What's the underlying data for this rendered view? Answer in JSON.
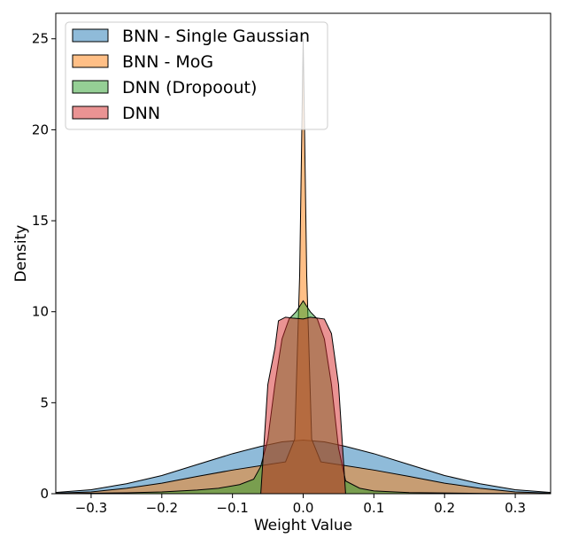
{
  "chart_data": {
    "type": "area",
    "title": "",
    "xlabel": "Weight Value",
    "ylabel": "Density",
    "xlim": [
      -0.35,
      0.35
    ],
    "ylim": [
      0,
      26.4
    ],
    "xticks": [
      -0.3,
      -0.2,
      -0.1,
      0.0,
      0.1,
      0.2,
      0.3
    ],
    "xtick_labels": [
      "−0.3",
      "−0.2",
      "−0.1",
      "0.0",
      "0.1",
      "0.2",
      "0.3"
    ],
    "yticks": [
      0,
      5,
      10,
      15,
      20,
      25
    ],
    "ytick_labels": [
      "0",
      "5",
      "10",
      "15",
      "20",
      "25"
    ],
    "grid": false,
    "legend_position": "top-left",
    "series": [
      {
        "name": "BNN - Single Gaussian",
        "color": "#1f77b4",
        "opacity": 0.5,
        "points": [
          [
            -0.35,
            0.07
          ],
          [
            -0.3,
            0.22
          ],
          [
            -0.25,
            0.55
          ],
          [
            -0.2,
            1.0
          ],
          [
            -0.15,
            1.6
          ],
          [
            -0.1,
            2.2
          ],
          [
            -0.06,
            2.6
          ],
          [
            -0.03,
            2.85
          ],
          [
            0.0,
            2.95
          ],
          [
            0.03,
            2.85
          ],
          [
            0.06,
            2.6
          ],
          [
            0.1,
            2.2
          ],
          [
            0.15,
            1.6
          ],
          [
            0.2,
            1.0
          ],
          [
            0.25,
            0.55
          ],
          [
            0.3,
            0.22
          ],
          [
            0.35,
            0.07
          ]
        ]
      },
      {
        "name": "BNN - MoG",
        "color": "#ff7f0e",
        "opacity": 0.5,
        "points": [
          [
            -0.35,
            0.03
          ],
          [
            -0.3,
            0.1
          ],
          [
            -0.25,
            0.3
          ],
          [
            -0.2,
            0.58
          ],
          [
            -0.15,
            0.95
          ],
          [
            -0.1,
            1.3
          ],
          [
            -0.05,
            1.6
          ],
          [
            -0.025,
            1.75
          ],
          [
            -0.012,
            3.0
          ],
          [
            -0.005,
            12.0
          ],
          [
            0.0,
            25.0
          ],
          [
            0.005,
            12.0
          ],
          [
            0.012,
            3.0
          ],
          [
            0.025,
            1.75
          ],
          [
            0.05,
            1.6
          ],
          [
            0.1,
            1.3
          ],
          [
            0.15,
            0.95
          ],
          [
            0.2,
            0.58
          ],
          [
            0.25,
            0.3
          ],
          [
            0.3,
            0.1
          ],
          [
            0.35,
            0.03
          ]
        ]
      },
      {
        "name": "DNN (Dropoout)",
        "color": "#2ca02c",
        "opacity": 0.5,
        "points": [
          [
            -0.35,
            0.0
          ],
          [
            -0.25,
            0.05
          ],
          [
            -0.2,
            0.1
          ],
          [
            -0.15,
            0.2
          ],
          [
            -0.12,
            0.3
          ],
          [
            -0.09,
            0.5
          ],
          [
            -0.07,
            0.8
          ],
          [
            -0.06,
            1.5
          ],
          [
            -0.05,
            3.0
          ],
          [
            -0.04,
            6.0
          ],
          [
            -0.03,
            8.5
          ],
          [
            -0.02,
            9.6
          ],
          [
            -0.01,
            10.0
          ],
          [
            0.0,
            10.6
          ],
          [
            0.01,
            10.0
          ],
          [
            0.02,
            9.6
          ],
          [
            0.03,
            8.5
          ],
          [
            0.04,
            6.0
          ],
          [
            0.05,
            2.5
          ],
          [
            0.06,
            0.7
          ],
          [
            0.08,
            0.3
          ],
          [
            0.1,
            0.15
          ],
          [
            0.15,
            0.06
          ],
          [
            0.25,
            0.02
          ],
          [
            0.35,
            0.0
          ]
        ]
      },
      {
        "name": "DNN",
        "color": "#d62728",
        "opacity": 0.5,
        "points": [
          [
            -0.35,
            0.0
          ],
          [
            -0.06,
            0.0
          ],
          [
            -0.05,
            6.0
          ],
          [
            -0.04,
            8.0
          ],
          [
            -0.035,
            9.5
          ],
          [
            -0.025,
            9.7
          ],
          [
            -0.015,
            9.65
          ],
          [
            0.0,
            9.6
          ],
          [
            0.01,
            9.7
          ],
          [
            0.02,
            9.65
          ],
          [
            0.03,
            9.6
          ],
          [
            0.04,
            8.8
          ],
          [
            0.05,
            6.0
          ],
          [
            0.06,
            0.0
          ],
          [
            0.35,
            0.0
          ]
        ]
      }
    ]
  }
}
